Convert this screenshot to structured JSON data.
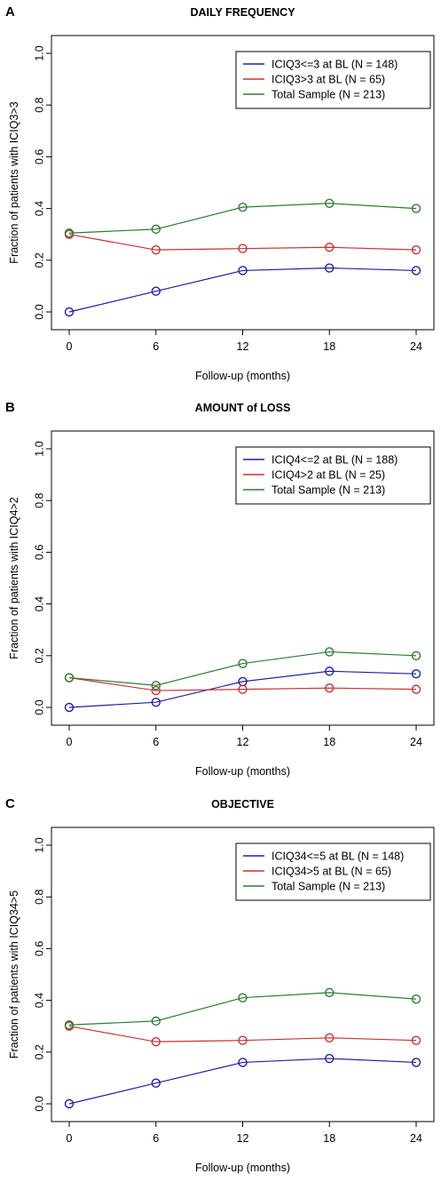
{
  "chart_data": [
    {
      "type": "line",
      "panel_letter": "A",
      "title": "DAILY FREQUENCY",
      "xlabel": "Follow-up (months)",
      "ylabel": "Fraction of patients with ICIQ3>3",
      "x": [
        0,
        6,
        12,
        18,
        24
      ],
      "x_ticks": [
        "0",
        "6",
        "12",
        "18",
        "24"
      ],
      "y_ticks": [
        "0.0",
        "0.2",
        "0.4",
        "0.6",
        "0.8",
        "1.0"
      ],
      "xlim": [
        0,
        24
      ],
      "ylim": [
        0,
        1
      ],
      "grid": false,
      "legend_position": "top-right",
      "series": [
        {
          "name": "ICIQ3<=3 at BL (N = 148)",
          "color": "#1f1fa8",
          "values": [
            0.0,
            0.08,
            0.16,
            0.17,
            0.16
          ]
        },
        {
          "name": "ICIQ3>3 at BL (N = 65)",
          "color": "#c83232",
          "values": [
            0.3,
            0.24,
            0.245,
            0.25,
            0.24
          ]
        },
        {
          "name": "Total Sample (N = 213)",
          "color": "#2e7d32",
          "values": [
            0.305,
            0.32,
            0.405,
            0.42,
            0.4
          ]
        }
      ]
    },
    {
      "type": "line",
      "panel_letter": "B",
      "title": "AMOUNT of LOSS",
      "xlabel": "Follow-up (months)",
      "ylabel": "Fraction of patients with ICIQ4>2",
      "x": [
        0,
        6,
        12,
        18,
        24
      ],
      "x_ticks": [
        "0",
        "6",
        "12",
        "18",
        "24"
      ],
      "y_ticks": [
        "0.0",
        "0.2",
        "0.4",
        "0.6",
        "0.8",
        "1.0"
      ],
      "xlim": [
        0,
        24
      ],
      "ylim": [
        0,
        1
      ],
      "grid": false,
      "legend_position": "top-right",
      "series": [
        {
          "name": "ICIQ4<=2 at BL (N = 188)",
          "color": "#1f1fa8",
          "values": [
            0.0,
            0.02,
            0.1,
            0.14,
            0.13
          ]
        },
        {
          "name": "ICIQ4>2 at BL (N = 25)",
          "color": "#c83232",
          "values": [
            0.115,
            0.065,
            0.07,
            0.075,
            0.07
          ]
        },
        {
          "name": "Total Sample (N = 213)",
          "color": "#2e7d32",
          "values": [
            0.115,
            0.085,
            0.17,
            0.215,
            0.2
          ]
        }
      ]
    },
    {
      "type": "line",
      "panel_letter": "C",
      "title": "OBJECTIVE",
      "xlabel": "Follow-up (months)",
      "ylabel": "Fraction of patients with ICIQ34>5",
      "x": [
        0,
        6,
        12,
        18,
        24
      ],
      "x_ticks": [
        "0",
        "6",
        "12",
        "18",
        "24"
      ],
      "y_ticks": [
        "0.0",
        "0.2",
        "0.4",
        "0.6",
        "0.8",
        "1.0"
      ],
      "xlim": [
        0,
        24
      ],
      "ylim": [
        0,
        1
      ],
      "grid": false,
      "legend_position": "top-right",
      "series": [
        {
          "name": "ICIQ34<=5 at BL (N = 148)",
          "color": "#1f1fa8",
          "values": [
            0.0,
            0.08,
            0.16,
            0.175,
            0.16
          ]
        },
        {
          "name": "ICIQ34>5 at BL (N = 65)",
          "color": "#c83232",
          "values": [
            0.3,
            0.24,
            0.245,
            0.255,
            0.245
          ]
        },
        {
          "name": "Total Sample (N = 213)",
          "color": "#2e7d32",
          "values": [
            0.305,
            0.32,
            0.41,
            0.43,
            0.405
          ]
        }
      ]
    }
  ]
}
